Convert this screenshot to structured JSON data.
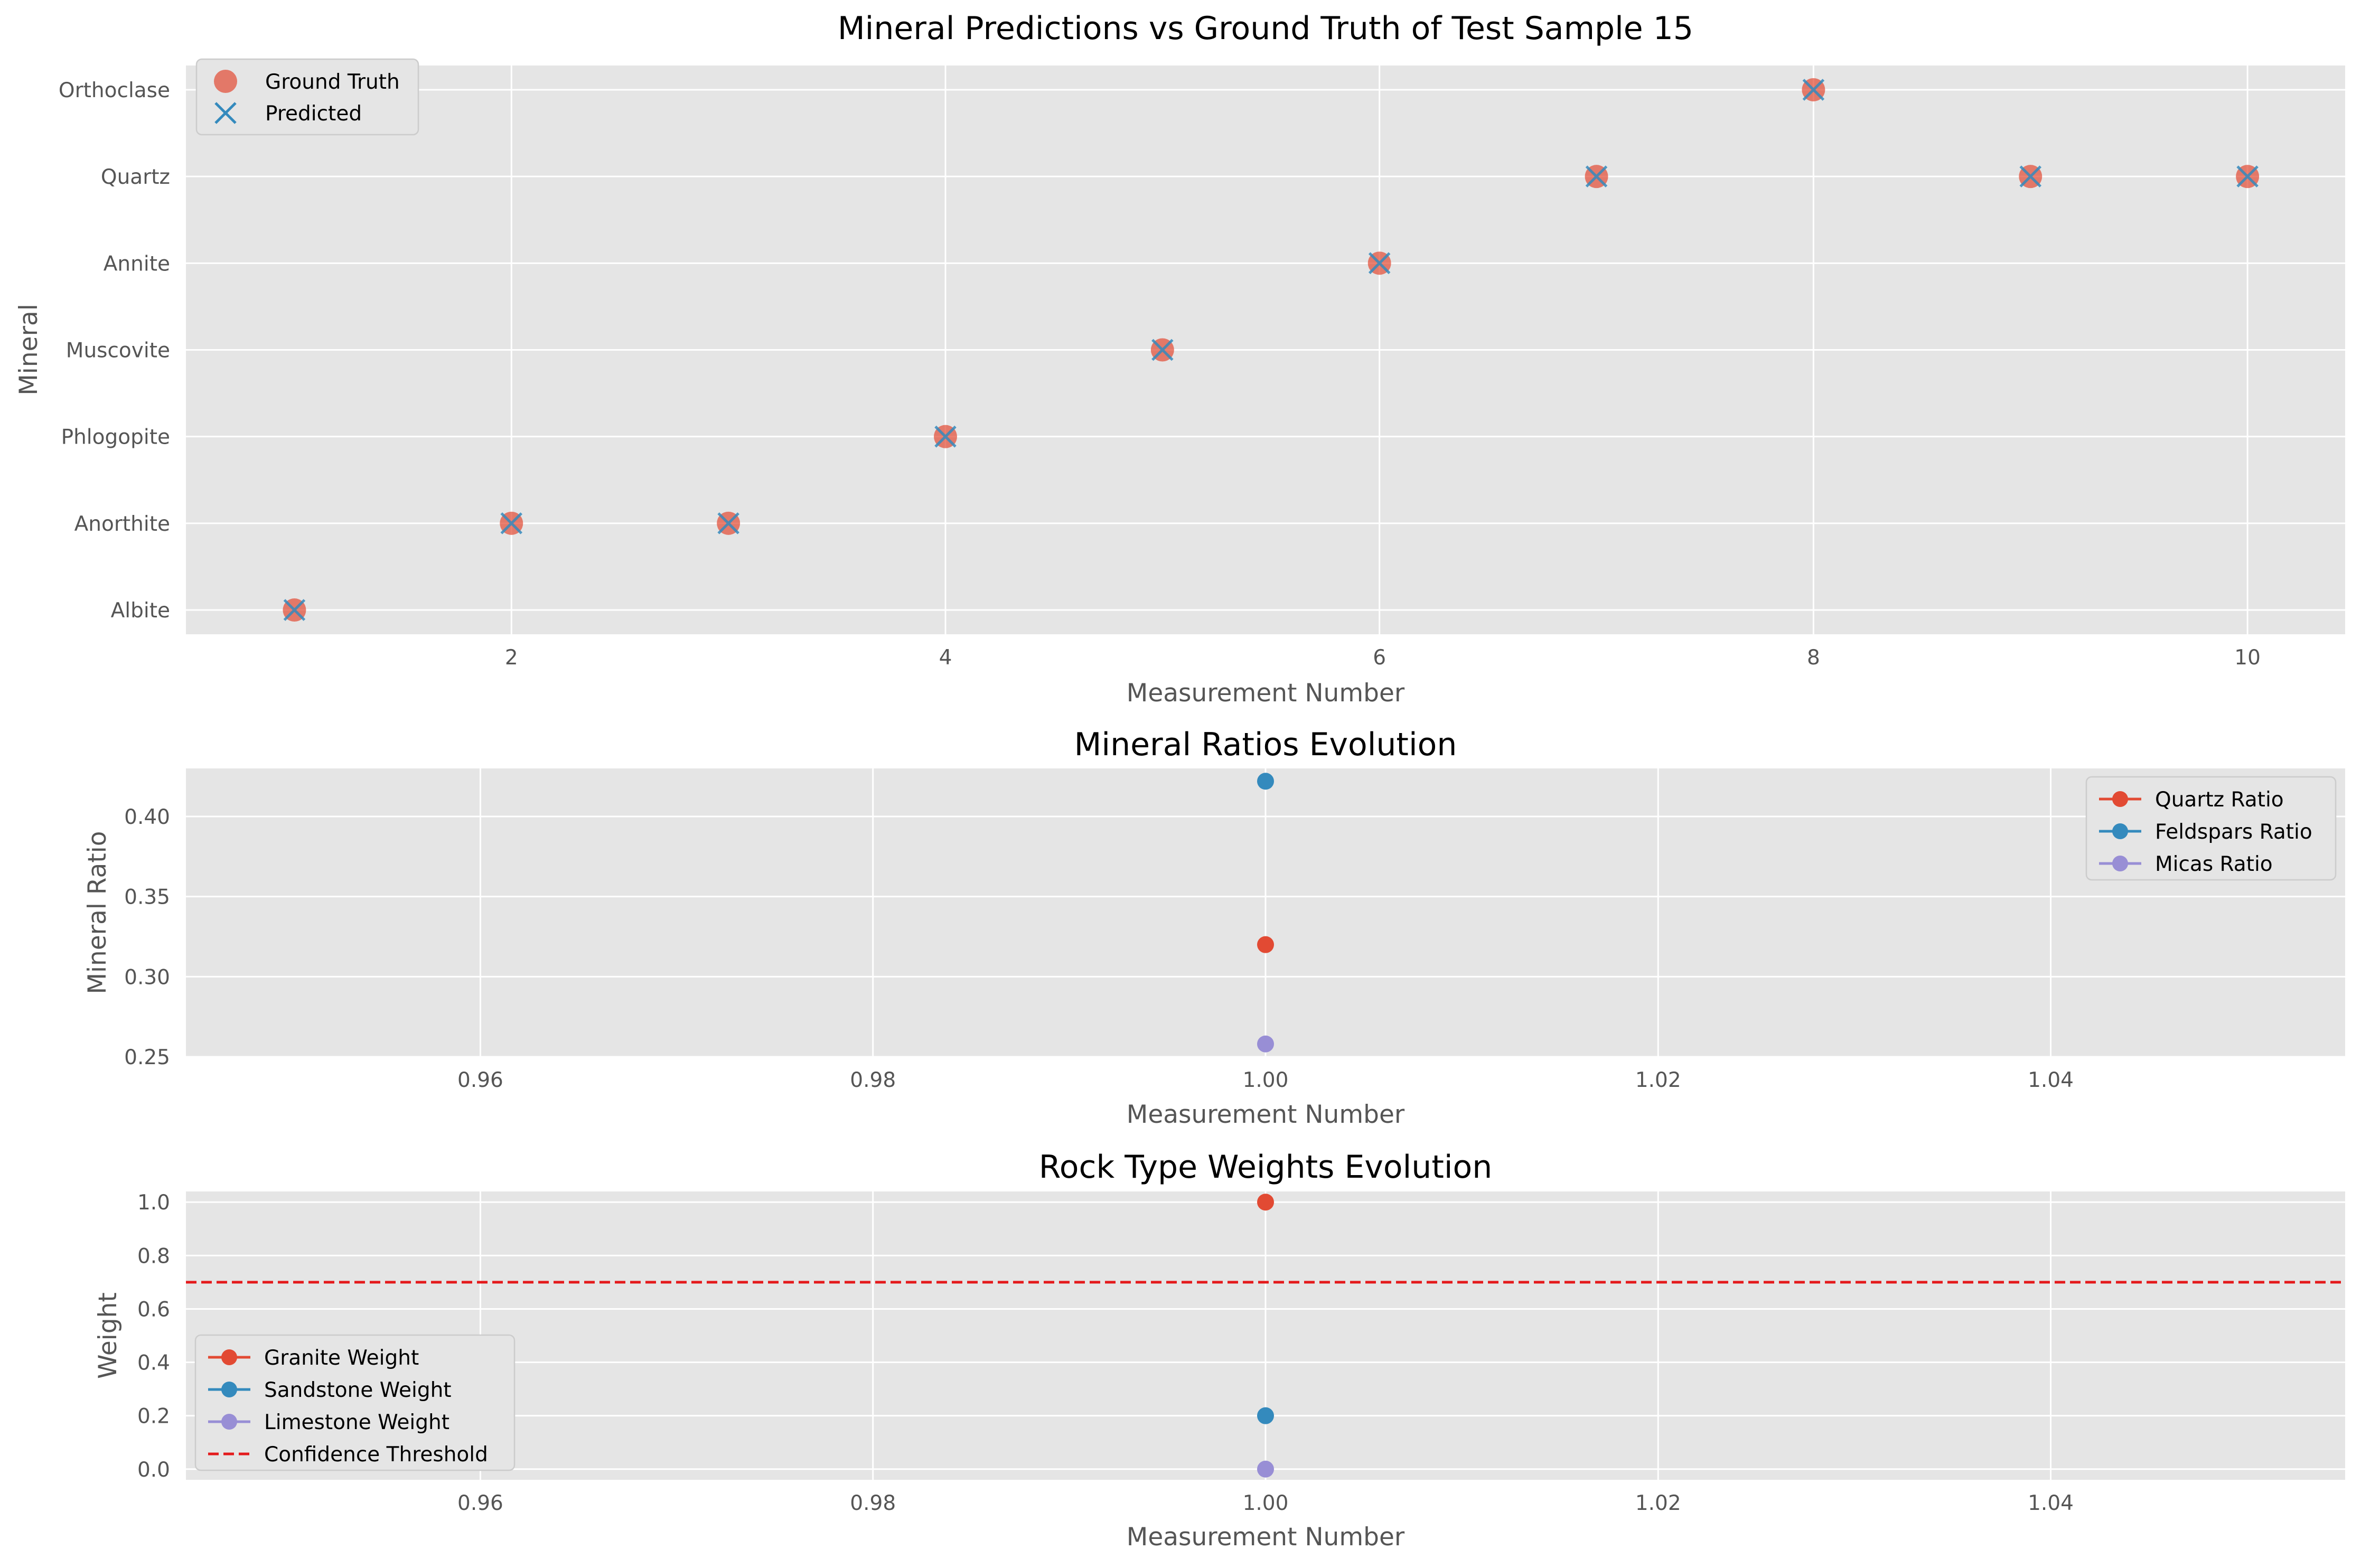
{
  "colors": {
    "axes_bg": "#e5e5e5",
    "grid": "#ffffff",
    "red": "#e24a33",
    "blue": "#348abd",
    "purple": "#988ed5",
    "threshold": "#e41a1c"
  },
  "chart_data": [
    {
      "type": "scatter",
      "title": "Mineral Predictions vs Ground Truth of Test Sample 15",
      "xlabel": "Measurement Number",
      "ylabel": "Mineral",
      "categories_y": [
        "Albite",
        "Anorthite",
        "Phlogopite",
        "Muscovite",
        "Annite",
        "Quartz",
        "Orthoclase"
      ],
      "xlim": [
        0.5,
        10.45
      ],
      "ylim": [
        -0.28,
        6.28
      ],
      "xticks": [
        2,
        4,
        6,
        8,
        10
      ],
      "xtick_labels": [
        "2",
        "4",
        "6",
        "8",
        "10"
      ],
      "legend_position": "upper-left",
      "series": [
        {
          "name": "Ground Truth",
          "marker": "circle",
          "x": [
            1,
            2,
            3,
            4,
            5,
            6,
            7,
            8,
            9,
            10
          ],
          "y": [
            "Albite",
            "Anorthite",
            "Anorthite",
            "Phlogopite",
            "Muscovite",
            "Annite",
            "Quartz",
            "Orthoclase",
            "Quartz",
            "Quartz"
          ]
        },
        {
          "name": "Predicted",
          "marker": "x",
          "x": [
            1,
            2,
            3,
            4,
            5,
            6,
            7,
            8,
            9,
            10
          ],
          "y": [
            "Albite",
            "Anorthite",
            "Anorthite",
            "Phlogopite",
            "Muscovite",
            "Annite",
            "Quartz",
            "Orthoclase",
            "Quartz",
            "Quartz"
          ]
        }
      ]
    },
    {
      "type": "line",
      "title": "Mineral Ratios Evolution",
      "xlabel": "Measurement Number",
      "ylabel": "Mineral Ratio",
      "xlim": [
        0.945,
        1.055
      ],
      "ylim": [
        0.25,
        0.43
      ],
      "xticks": [
        0.96,
        0.98,
        1.0,
        1.02,
        1.04
      ],
      "xtick_labels": [
        "0.96",
        "0.98",
        "1.00",
        "1.02",
        "1.04"
      ],
      "yticks": [
        0.25,
        0.3,
        0.35,
        0.4
      ],
      "ytick_labels": [
        "0.25",
        "0.30",
        "0.35",
        "0.40"
      ],
      "legend_position": "upper-right",
      "series": [
        {
          "name": "Quartz Ratio",
          "x": [
            1.0
          ],
          "y": [
            0.32
          ]
        },
        {
          "name": "Feldspars Ratio",
          "x": [
            1.0
          ],
          "y": [
            0.422
          ]
        },
        {
          "name": "Micas Ratio",
          "x": [
            1.0
          ],
          "y": [
            0.258
          ]
        }
      ]
    },
    {
      "type": "line",
      "title": "Rock Type Weights Evolution",
      "xlabel": "Measurement Number",
      "ylabel": "Weight",
      "xlim": [
        0.945,
        1.055
      ],
      "ylim": [
        -0.04,
        1.04
      ],
      "xticks": [
        0.96,
        0.98,
        1.0,
        1.02,
        1.04
      ],
      "xtick_labels": [
        "0.96",
        "0.98",
        "1.00",
        "1.02",
        "1.04"
      ],
      "yticks": [
        0.0,
        0.2,
        0.4,
        0.6,
        0.8,
        1.0
      ],
      "ytick_labels": [
        "0.0",
        "0.2",
        "0.4",
        "0.6",
        "0.8",
        "1.0"
      ],
      "legend_position": "lower-left",
      "series": [
        {
          "name": "Granite Weight",
          "x": [
            1.0
          ],
          "y": [
            1.0
          ]
        },
        {
          "name": "Sandstone Weight",
          "x": [
            1.0
          ],
          "y": [
            0.2
          ]
        },
        {
          "name": "Limestone Weight",
          "x": [
            1.0
          ],
          "y": [
            0.0
          ]
        }
      ],
      "threshold": {
        "name": "Confidence Threshold",
        "y": 0.7,
        "style": "dashed"
      }
    }
  ]
}
